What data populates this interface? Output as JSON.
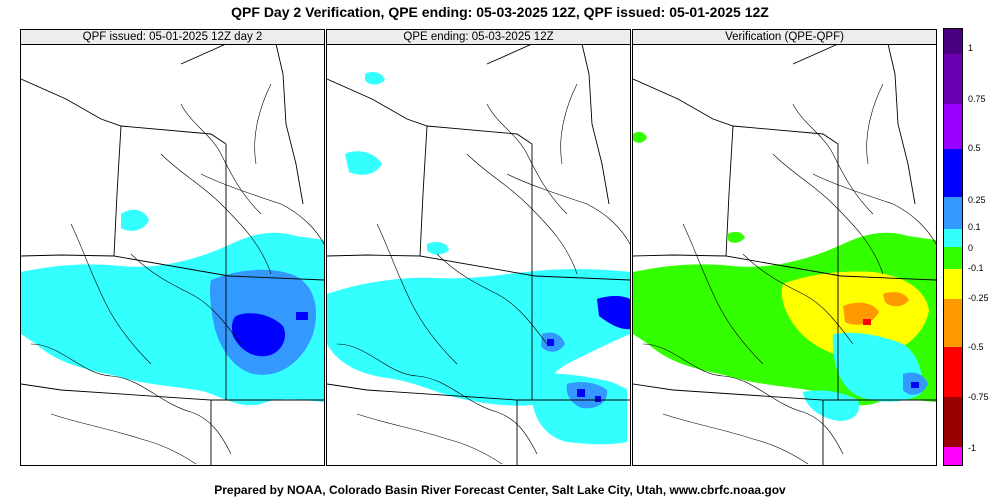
{
  "title": "QPF Day 2 Verification, QPE ending: 05-03-2025 12Z, QPF issued: 05-01-2025 12Z",
  "footer": "Prepared by NOAA, Colorado Basin River Forecast Center, Salt Lake City, Utah, www.cbrfc.noaa.gov",
  "panels": [
    {
      "name": "qpf",
      "title": "QPF issued: 05-01-2025 12Z day 2"
    },
    {
      "name": "qpe",
      "title": "QPE ending: 05-03-2025 12Z"
    },
    {
      "name": "verification",
      "title": "Verification (QPE-QPF)"
    }
  ],
  "colors": {
    "p1_0": "#ff00ff",
    "p0_75": "#4b0082",
    "p0_5": "#8a00ff",
    "p0_25": "#0000ff",
    "p0_1": "#3399ff",
    "zero": "#33ffff",
    "n0_1": "#33ff00",
    "n0_25": "#ffff00",
    "n0_5": "#ff9900",
    "n0_75": "#ff0000",
    "n1_0": "#990000",
    "nmax": "#660000"
  },
  "colorbar": {
    "labels": [
      "1",
      "0.75",
      "0.5",
      "0.25",
      "0.1",
      "0",
      "-0.1",
      "-0.25",
      "-0.5",
      "-0.75",
      "-1"
    ]
  }
}
